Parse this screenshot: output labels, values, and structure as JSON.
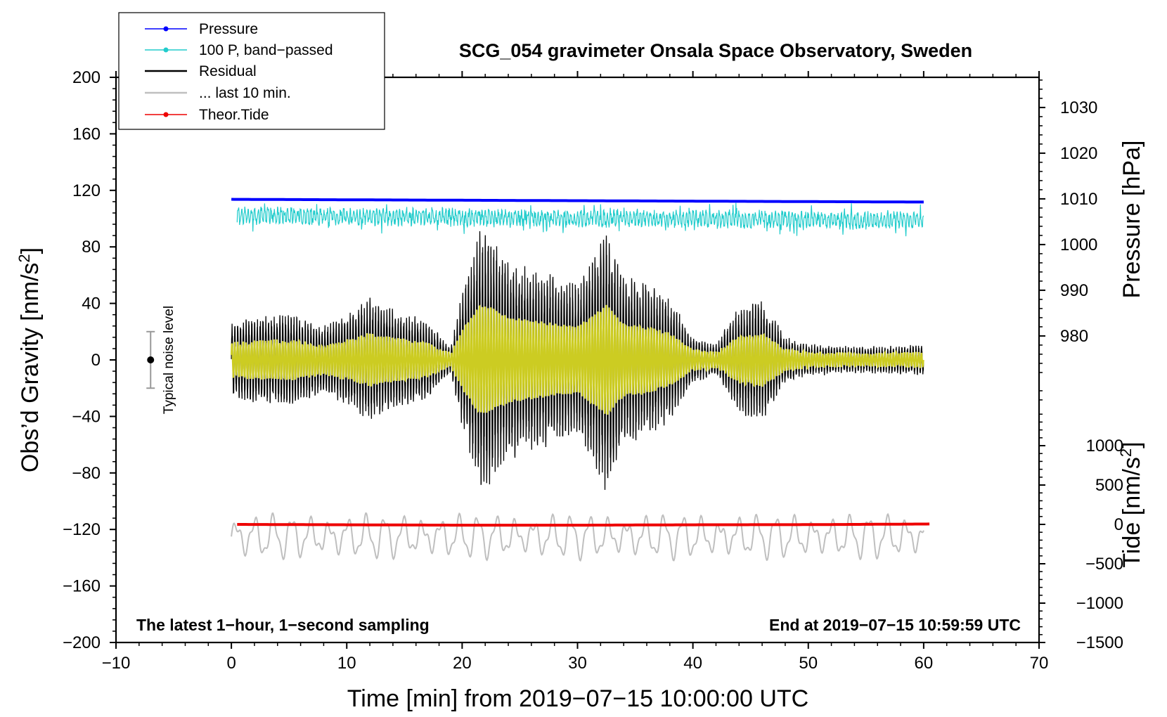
{
  "chart_data": {
    "type": "line",
    "title": "SCG_054 gravimeter Onsala Space Observatory, Sweden",
    "xlabel": "Time [min] from 2019−07−15 10:00:00 UTC",
    "ylabel_left": "Obs’d Gravity [nm/s",
    "ylabel_left_sup": "2",
    "ylabel_left_end": "]",
    "ylabel_right_pressure": "Pressure [hPa]",
    "ylabel_right_tide": "Tide [nm/s",
    "ylabel_right_tide_sup": "2",
    "ylabel_right_tide_end": "]",
    "xlim": [
      -10,
      70
    ],
    "ylim": [
      -200,
      200
    ],
    "pressure_lim": [
      964.6,
      1036.6
    ],
    "tide_lim": [
      -1500,
      1500
    ],
    "x_ticks": [
      -10,
      0,
      10,
      20,
      30,
      40,
      50,
      60,
      70
    ],
    "x_tick_labels": [
      "−10",
      "0",
      "10",
      "20",
      "30",
      "40",
      "50",
      "60",
      "70"
    ],
    "y_ticks": [
      200,
      160,
      120,
      80,
      40,
      0,
      -40,
      -80,
      -120,
      -160,
      -200
    ],
    "y_tick_labels": [
      "200",
      "160",
      "120",
      "80",
      "40",
      "0",
      "−40",
      "−80",
      "−120",
      "−160",
      "−200"
    ],
    "pressure_ticks": [
      1030,
      1020,
      1010,
      1000,
      990,
      980
    ],
    "pressure_tick_labels": [
      "1030",
      "1020",
      "1010",
      "1000",
      "990",
      "980"
    ],
    "tide_ticks": [
      1000,
      500,
      0,
      -500,
      -1000,
      -1500
    ],
    "tide_tick_labels": [
      "1000",
      "500",
      "0",
      "−500",
      "−1000",
      "−1500"
    ],
    "series": [
      {
        "name": "Pressure",
        "color": "#0000ff",
        "axis": "pressure",
        "x": [
          0,
          20,
          40,
          60
        ],
        "values": [
          1009.9,
          1009.7,
          1009.5,
          1009.3
        ]
      },
      {
        "name": "100 P, band−passed",
        "color": "#22cccc",
        "axis": "left",
        "center": 100,
        "amplitude": 6
      },
      {
        "name": "Residual",
        "color": "#000000",
        "axis": "left",
        "envelope_x": [
          0,
          2,
          5,
          8,
          10,
          12,
          15,
          17,
          19,
          20,
          21.5,
          22.5,
          24,
          26,
          28,
          30,
          32.5,
          34,
          36,
          38,
          40,
          42,
          44,
          46,
          48,
          50,
          55,
          60
        ],
        "envelope_values": [
          25,
          28,
          30,
          22,
          30,
          40,
          30,
          25,
          8,
          45,
          85,
          80,
          65,
          60,
          55,
          50,
          85,
          55,
          50,
          40,
          15,
          10,
          35,
          40,
          15,
          10,
          8,
          10
        ]
      },
      {
        "name": "... last 10 min.",
        "color": "#bfbfbf",
        "axis": "left",
        "center": -125,
        "amplitude": 12
      },
      {
        "name": "Theor.Tide",
        "color": "#ee0000",
        "axis": "tide",
        "x": [
          0.5,
          10,
          20,
          30,
          40,
          50,
          60.5
        ],
        "values": [
          0,
          -5,
          -10,
          -10,
          -5,
          -3,
          5
        ]
      }
    ],
    "noise_level": {
      "label": "Typical noise level",
      "x": -7,
      "y": 0,
      "low": -20,
      "high": 20
    },
    "annotation_left": "The latest 1−hour, 1−second sampling",
    "annotation_right": "End at 2019−07−15 10:59:59 UTC",
    "legend_position": "top-left"
  },
  "colors": {
    "pressure": "#0000ff",
    "bandpassed": "#22cccc",
    "residual": "#000000",
    "residual_filtered": "#cccc22",
    "last10": "#bfbfbf",
    "tide": "#ee0000",
    "noise_bar": "#999999"
  }
}
